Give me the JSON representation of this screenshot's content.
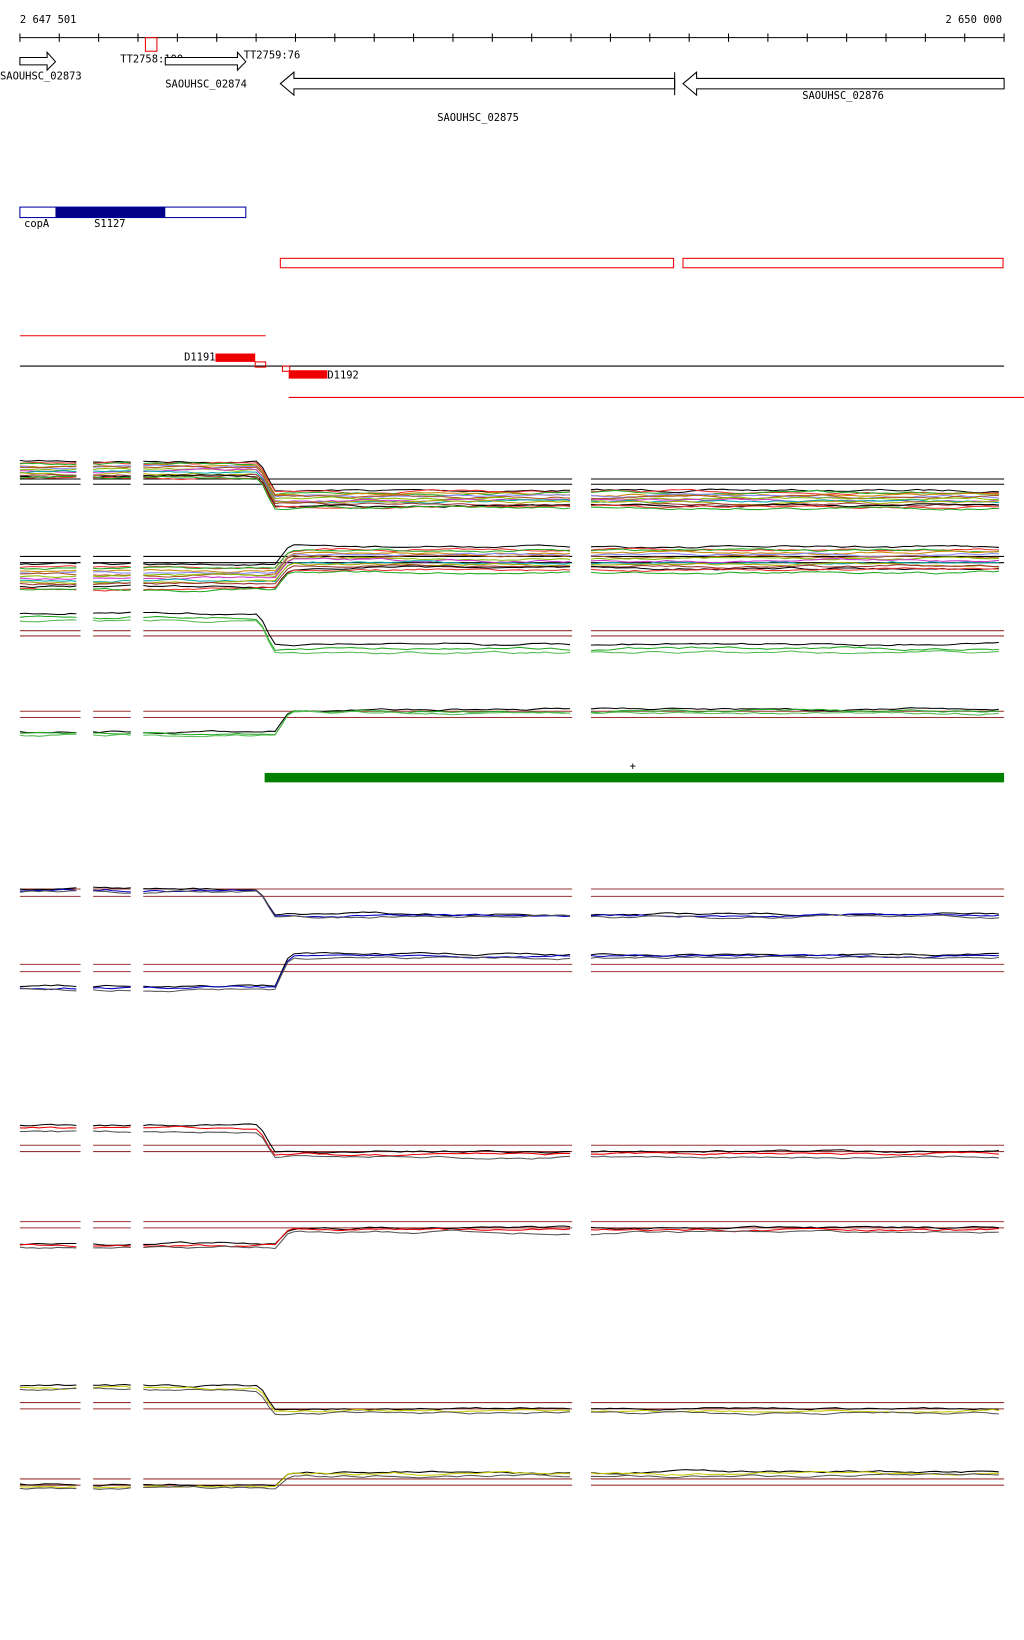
{
  "ruler": {
    "start": "2 647 501",
    "end": "2 650 000"
  },
  "genes": [
    {
      "label": "SAOUHSC_02873"
    },
    {
      "label": "SAOUHSC_02874"
    },
    {
      "label": "SAOUHSC_02875"
    },
    {
      "label": "SAOUHSC_02876"
    }
  ],
  "terminators": [
    {
      "label": "TT2758:100"
    },
    {
      "label": "TT2759:76"
    }
  ],
  "srna": [
    {
      "label": "copA"
    },
    {
      "label": "S1127"
    }
  ],
  "regions": [
    {
      "label": "D1191"
    },
    {
      "label": "D1192"
    }
  ],
  "strand_marker": "+"
}
